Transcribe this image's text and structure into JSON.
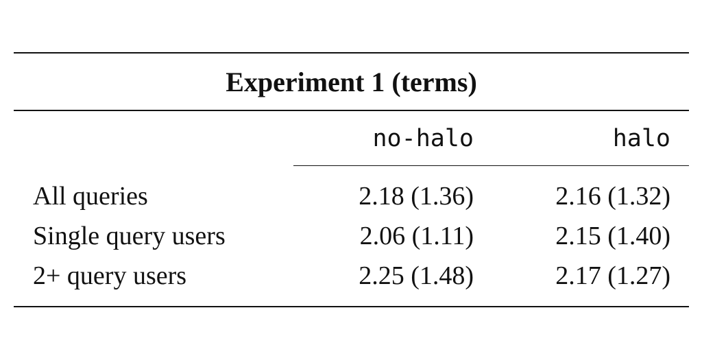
{
  "table": {
    "title": "Experiment 1 (terms)",
    "columns": [
      "no-halo",
      "halo"
    ],
    "rows": [
      {
        "label": "All queries",
        "values": [
          "2.18 (1.36)",
          "2.16 (1.32)"
        ]
      },
      {
        "label": "Single query users",
        "values": [
          "2.06 (1.11)",
          "2.15 (1.40)"
        ]
      },
      {
        "label": "2+ query users",
        "values": [
          "2.25 (1.48)",
          "2.17 (1.27)"
        ]
      }
    ]
  }
}
